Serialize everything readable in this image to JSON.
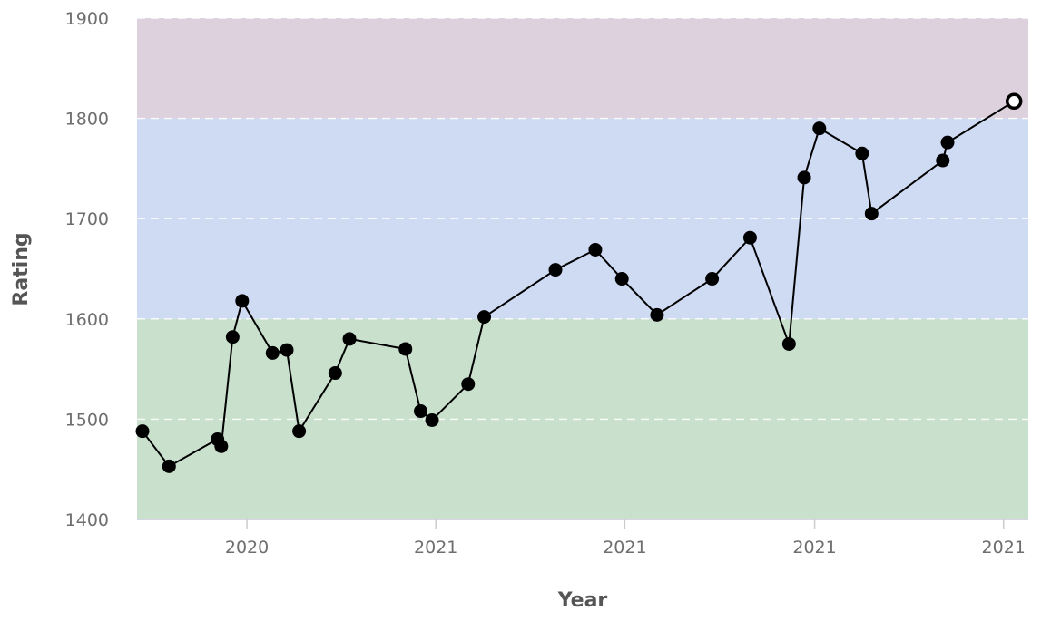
{
  "chart_data": {
    "type": "line",
    "xlabel": "Year",
    "ylabel": "Rating",
    "ylim": [
      1400,
      1900
    ],
    "y_ticks": [
      1400,
      1500,
      1600,
      1700,
      1800,
      1900
    ],
    "x_tick_labels": [
      "2020",
      "2021",
      "2021",
      "2021",
      "2021"
    ],
    "grid": true,
    "bands": [
      {
        "from": 1400,
        "to": 1600,
        "color": "#c9e0cc"
      },
      {
        "from": 1600,
        "to": 1800,
        "color": "#cfdaf3"
      },
      {
        "from": 1800,
        "to": 1900,
        "color": "#ddd1de"
      }
    ],
    "series": [
      {
        "values": [
          1488,
          1453,
          1480,
          1473,
          1582,
          1618,
          1566,
          1569,
          1488,
          1546,
          1580,
          1570,
          1508,
          1499,
          1535,
          1602,
          1649,
          1669,
          1640,
          1604,
          1640,
          1681,
          1575,
          1741,
          1790,
          1765,
          1705,
          1758,
          1776,
          1817
        ],
        "x_index": [
          0.0,
          0.28,
          0.79,
          0.83,
          0.95,
          1.05,
          1.37,
          1.52,
          1.65,
          2.03,
          2.18,
          2.77,
          2.93,
          3.05,
          3.43,
          3.6,
          4.35,
          4.77,
          5.05,
          5.42,
          6.0,
          6.4,
          6.81,
          6.97,
          7.13,
          7.58,
          7.68,
          8.43,
          8.48,
          9.18
        ],
        "color": "#000000",
        "last_point_hollow": true
      }
    ],
    "x_tick_index": [
      1.1,
      3.09,
      5.08,
      7.08,
      9.07
    ]
  },
  "colors": {
    "axis_text": "#6e6e6e",
    "line": "#000000",
    "grid": "#ffffff"
  }
}
